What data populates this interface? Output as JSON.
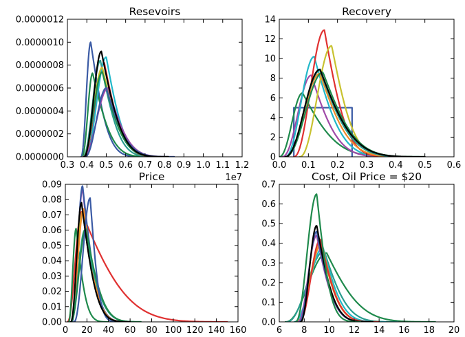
{
  "figure": {
    "background": "#ffffff"
  },
  "colors": {
    "blue": "#3b5ba5",
    "red": "#e03131",
    "cyan": "#22b8c9",
    "green": "#1f8a4c",
    "yellow": "#c8c230",
    "magenta": "#a04aa8",
    "teal": "#2a9d8f",
    "orange": "#f08c2a",
    "black": "#000000"
  },
  "chart_data": [
    {
      "id": "reservoirs",
      "type": "line",
      "title": "Resevoirs",
      "xlabel": "",
      "ylabel": "",
      "xlim": [
        0.3,
        1.2
      ],
      "ylim": [
        0,
        1.2e-06
      ],
      "xticks": [
        0.3,
        0.4,
        0.5,
        0.6,
        0.7,
        0.8,
        0.9,
        1.0,
        1.1,
        1.2
      ],
      "xtick_labels": [
        "0.3",
        "0.4",
        "0.5",
        "0.6",
        "0.7",
        "0.8",
        "0.9",
        "1.0",
        "1.1",
        "1.2"
      ],
      "yticks": [
        0,
        2e-07,
        4e-07,
        6e-07,
        8e-07,
        1e-06,
        1.2e-06
      ],
      "ytick_labels": [
        "0.0000000",
        "0.0000002",
        "0.0000004",
        "0.0000006",
        "0.0000008",
        "0.0000010",
        "0.0000012"
      ],
      "offset_label": "1e7",
      "series": [
        {
          "color": "blue",
          "shape": "lognormal",
          "start": 0.37,
          "mode": 0.42,
          "peak": 1e-06,
          "end": 0.7
        },
        {
          "color": "green",
          "shape": "lognormal",
          "start": 0.375,
          "mode": 0.43,
          "peak": 7.3e-07,
          "end": 0.75
        },
        {
          "color": "teal",
          "shape": "lognormal",
          "start": 0.38,
          "mode": 0.47,
          "peak": 8.4e-07,
          "end": 0.78
        },
        {
          "color": "red",
          "shape": "lognormal",
          "start": 0.39,
          "mode": 0.49,
          "peak": 8.2e-07,
          "end": 0.8
        },
        {
          "color": "cyan",
          "shape": "lognormal",
          "start": 0.39,
          "mode": 0.5,
          "peak": 8.7e-07,
          "end": 0.8
        },
        {
          "color": "yellow",
          "shape": "lognormal",
          "start": 0.38,
          "mode": 0.48,
          "peak": 7.8e-07,
          "end": 0.82
        },
        {
          "color": "green",
          "shape": "lognormal",
          "start": 0.38,
          "mode": 0.48,
          "peak": 7.4e-07,
          "end": 0.82
        },
        {
          "color": "magenta",
          "shape": "lognormal",
          "start": 0.38,
          "mode": 0.51,
          "peak": 6e-07,
          "end": 0.85
        },
        {
          "color": "blue",
          "shape": "lognormal",
          "start": 0.39,
          "mode": 0.5,
          "peak": 6e-07,
          "end": 0.85
        },
        {
          "color": "black",
          "shape": "lognormal",
          "start": 0.385,
          "mode": 0.475,
          "peak": 9.2e-07,
          "end": 0.82
        }
      ]
    },
    {
      "id": "recovery",
      "type": "line",
      "title": "Recovery",
      "xlabel": "",
      "ylabel": "",
      "xlim": [
        0.0,
        0.6
      ],
      "ylim": [
        0,
        14
      ],
      "xticks": [
        0.0,
        0.1,
        0.2,
        0.3,
        0.4,
        0.5,
        0.6
      ],
      "xtick_labels": [
        "0.0",
        "0.1",
        "0.2",
        "0.3",
        "0.4",
        "0.5",
        "0.6"
      ],
      "yticks": [
        0,
        2,
        4,
        6,
        8,
        10,
        12,
        14
      ],
      "ytick_labels": [
        "0",
        "2",
        "4",
        "6",
        "8",
        "10",
        "12",
        "14"
      ],
      "series": [
        {
          "color": "blue",
          "shape": "uniform",
          "low": 0.05,
          "high": 0.25,
          "height": 5
        },
        {
          "color": "green",
          "shape": "lognormal",
          "start": 0.0,
          "mode": 0.08,
          "peak": 6.5,
          "end": 0.45
        },
        {
          "color": "magenta",
          "shape": "lognormal",
          "start": 0.01,
          "mode": 0.11,
          "peak": 8.3,
          "end": 0.4
        },
        {
          "color": "cyan",
          "shape": "lognormal",
          "start": 0.02,
          "mode": 0.12,
          "peak": 10.2,
          "end": 0.42
        },
        {
          "color": "red",
          "shape": "lognormal",
          "start": 0.05,
          "mode": 0.155,
          "peak": 12.9,
          "end": 0.4
        },
        {
          "color": "yellow",
          "shape": "lognormal",
          "start": 0.07,
          "mode": 0.18,
          "peak": 11.3,
          "end": 0.42
        },
        {
          "color": "orange",
          "shape": "lognormal",
          "start": 0.02,
          "mode": 0.14,
          "peak": 8.5,
          "end": 0.45
        },
        {
          "color": "teal",
          "shape": "lognormal",
          "start": 0.02,
          "mode": 0.14,
          "peak": 8.8,
          "end": 0.48
        },
        {
          "color": "green",
          "shape": "lognormal",
          "start": 0.02,
          "mode": 0.15,
          "peak": 8.6,
          "end": 0.5
        },
        {
          "color": "black",
          "shape": "lognormal",
          "start": 0.02,
          "mode": 0.14,
          "peak": 8.9,
          "end": 0.5
        }
      ]
    },
    {
      "id": "price",
      "type": "line",
      "title": "Price",
      "xlabel": "",
      "ylabel": "",
      "xlim": [
        0,
        160
      ],
      "ylim": [
        0,
        0.09
      ],
      "xticks": [
        0,
        20,
        40,
        60,
        80,
        100,
        120,
        140,
        160
      ],
      "xtick_labels": [
        "0",
        "20",
        "40",
        "60",
        "80",
        "100",
        "120",
        "140",
        "160"
      ],
      "yticks": [
        0,
        0.01,
        0.02,
        0.03,
        0.04,
        0.05,
        0.06,
        0.07,
        0.08,
        0.09
      ],
      "ytick_labels": [
        "0.00",
        "0.01",
        "0.02",
        "0.03",
        "0.04",
        "0.05",
        "0.06",
        "0.07",
        "0.08",
        "0.09"
      ],
      "series": [
        {
          "color": "red",
          "shape": "lognormal",
          "start": 2,
          "mode": 15,
          "peak": 0.072,
          "end": 150
        },
        {
          "color": "green",
          "shape": "lognormal",
          "start": 3,
          "mode": 10,
          "peak": 0.061,
          "end": 40
        },
        {
          "color": "magenta",
          "shape": "lognormal",
          "start": 6,
          "mode": 16,
          "peak": 0.087,
          "end": 60
        },
        {
          "color": "blue",
          "shape": "lognormal",
          "start": 6,
          "mode": 16,
          "peak": 0.089,
          "end": 60
        },
        {
          "color": "yellow",
          "shape": "lognormal",
          "start": 5,
          "mode": 16,
          "peak": 0.072,
          "end": 60
        },
        {
          "color": "orange",
          "shape": "lognormal",
          "start": 5,
          "mode": 17,
          "peak": 0.074,
          "end": 60
        },
        {
          "color": "teal",
          "shape": "lognormal",
          "start": 5,
          "mode": 18,
          "peak": 0.06,
          "end": 70
        },
        {
          "color": "green",
          "shape": "lognormal",
          "start": 5,
          "mode": 19,
          "peak": 0.061,
          "end": 70
        },
        {
          "color": "blue",
          "shape": "lognormal",
          "start": 8,
          "mode": 23,
          "peak": 0.081,
          "end": 50
        },
        {
          "color": "black",
          "shape": "lognormal",
          "start": 5,
          "mode": 15,
          "peak": 0.078,
          "end": 60
        }
      ]
    },
    {
      "id": "cost",
      "type": "line",
      "title": "Cost, Oil Price = $20",
      "xlabel": "",
      "ylabel": "",
      "xlim": [
        6,
        20
      ],
      "ylim": [
        0,
        0.7
      ],
      "xticks": [
        6,
        8,
        10,
        12,
        14,
        16,
        18,
        20
      ],
      "xtick_labels": [
        "6",
        "8",
        "10",
        "12",
        "14",
        "16",
        "18",
        "20"
      ],
      "yticks": [
        0,
        0.1,
        0.2,
        0.3,
        0.4,
        0.5,
        0.6,
        0.7
      ],
      "ytick_labels": [
        "0.0",
        "0.1",
        "0.2",
        "0.3",
        "0.4",
        "0.5",
        "0.6",
        "0.7"
      ],
      "series": [
        {
          "color": "green",
          "shape": "lognormal",
          "start": 6.5,
          "mode": 9.8,
          "peak": 0.35,
          "end": 18.5
        },
        {
          "color": "teal",
          "shape": "lognormal",
          "start": 6.6,
          "mode": 9.6,
          "peak": 0.36,
          "end": 15.5
        },
        {
          "color": "cyan",
          "shape": "lognormal",
          "start": 7.2,
          "mode": 9.5,
          "peak": 0.38,
          "end": 14.5
        },
        {
          "color": "orange",
          "shape": "lognormal",
          "start": 7.4,
          "mode": 9.4,
          "peak": 0.4,
          "end": 14.0
        },
        {
          "color": "yellow",
          "shape": "lognormal",
          "start": 7.5,
          "mode": 9.3,
          "peak": 0.41,
          "end": 14.0
        },
        {
          "color": "red",
          "shape": "lognormal",
          "start": 7.6,
          "mode": 9.3,
          "peak": 0.42,
          "end": 14.0
        },
        {
          "color": "magenta",
          "shape": "lognormal",
          "start": 7.5,
          "mode": 9.0,
          "peak": 0.44,
          "end": 13.5
        },
        {
          "color": "blue",
          "shape": "lognormal",
          "start": 7.6,
          "mode": 9.0,
          "peak": 0.46,
          "end": 13.5
        },
        {
          "color": "black",
          "shape": "lognormal",
          "start": 7.7,
          "mode": 9.0,
          "peak": 0.49,
          "end": 13.5
        },
        {
          "color": "green",
          "shape": "lognormal",
          "start": 7.3,
          "mode": 9.0,
          "peak": 0.65,
          "end": 12.5
        }
      ]
    }
  ]
}
